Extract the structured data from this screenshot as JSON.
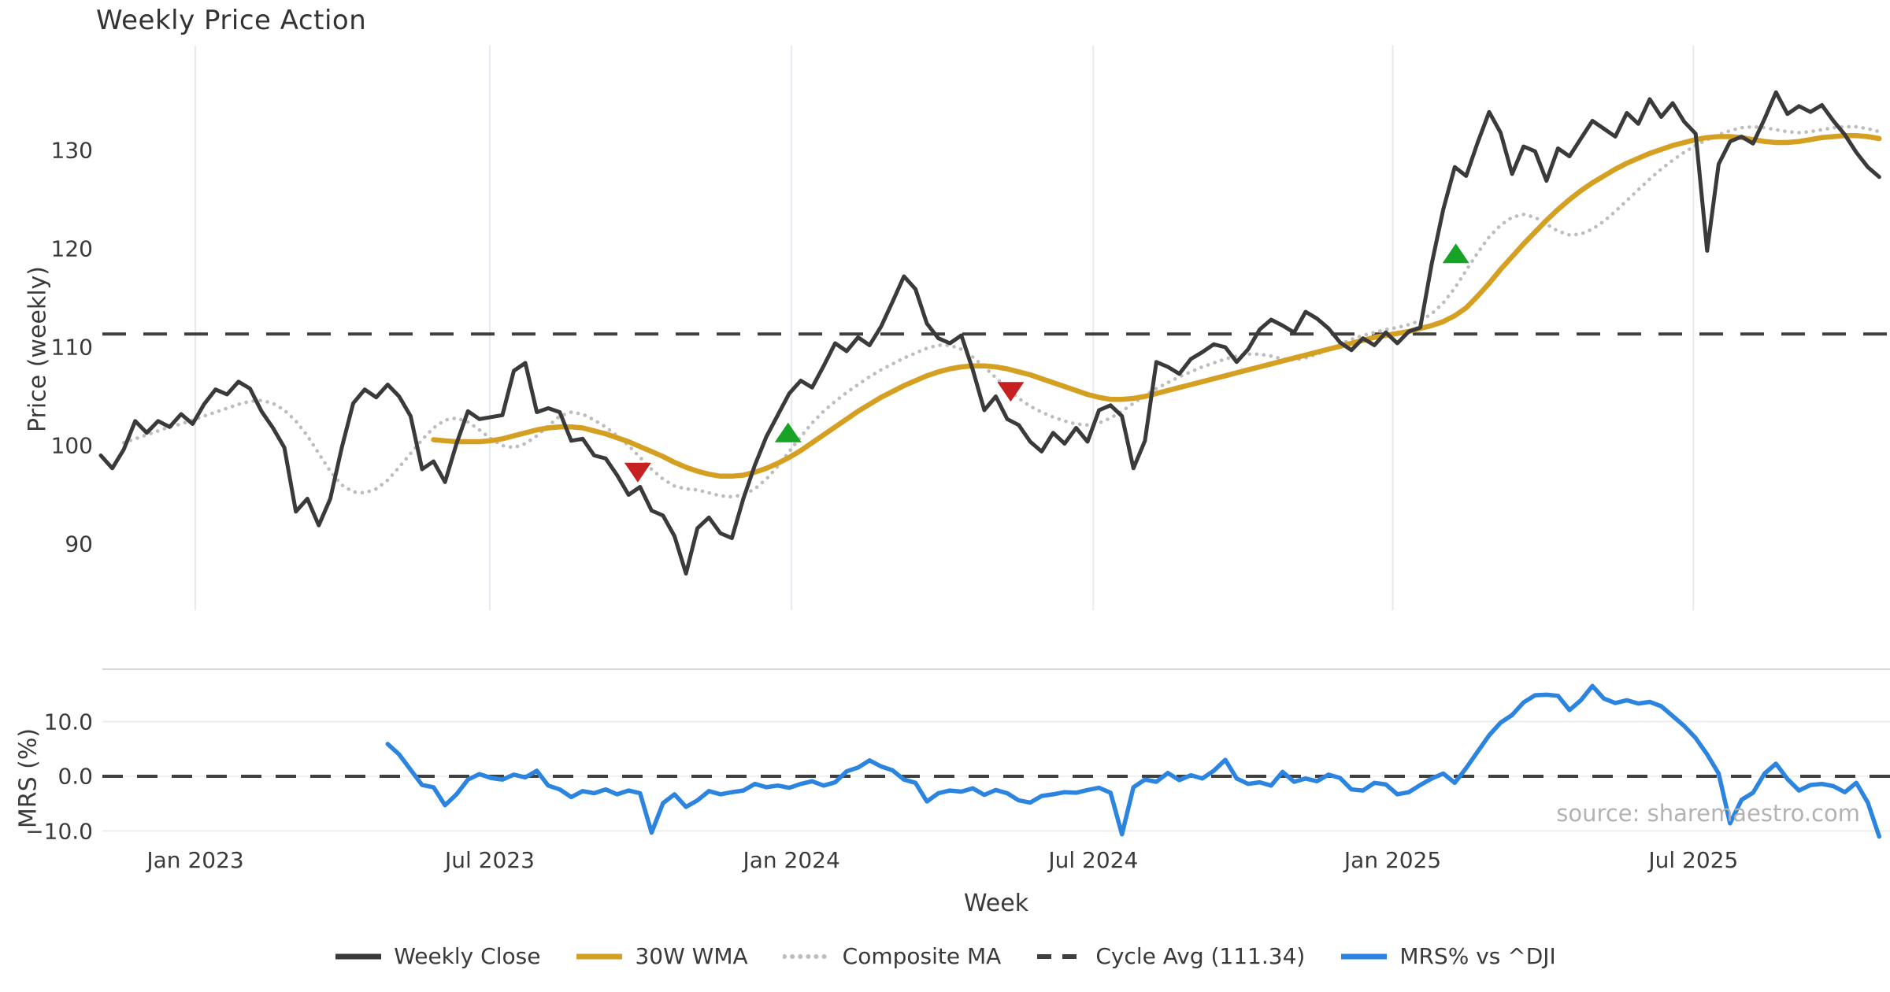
{
  "chart_data": {
    "type": "line",
    "title": "Weekly Price Action",
    "xlabel": "Week",
    "watermark": "source: sharemaestro.com",
    "x_unit": "weeks since first data point (Nov 2022), weekly frequency",
    "x_ticks": [
      {
        "label": "Jan 2023",
        "week": 8.24
      },
      {
        "label": "Jul 2023",
        "week": 33.9
      },
      {
        "label": "Jan 2024",
        "week": 60.2
      },
      {
        "label": "Jul 2024",
        "week": 86.5
      },
      {
        "label": "Jan 2025",
        "week": 112.6
      },
      {
        "label": "Jul 2025",
        "week": 138.8
      }
    ],
    "panels": [
      {
        "name": "price",
        "ylabel": "Price (weekly)",
        "ylim": [
          83.4,
          140.6
        ],
        "yticks": [
          {
            "label": "90",
            "value": 90
          },
          {
            "label": "100",
            "value": 100
          },
          {
            "label": "110",
            "value": 110
          },
          {
            "label": "120",
            "value": 120
          },
          {
            "label": "130",
            "value": 130
          }
        ],
        "grid": "vertical-only",
        "reference_line": {
          "name": "Cycle Avg",
          "value": 111.34,
          "color": "#3f3f3f",
          "style": "dashed"
        },
        "series": [
          {
            "name": "Composite MA",
            "color": "#bdbdbd",
            "style": "dotted",
            "width": 4.6,
            "start_week": 2,
            "values": [
              100.3,
              100.7,
              101.1,
              101.5,
              101.9,
              102.2,
              102.6,
              103.0,
              103.4,
              103.8,
              104.2,
              104.5,
              104.6,
              104.3,
              103.6,
              102.5,
              101.0,
              99.2,
              97.4,
              96.0,
              95.3,
              95.2,
              95.6,
              96.5,
              97.8,
              99.2,
              100.6,
              101.8,
              102.6,
              102.8,
              102.4,
              101.6,
              100.7,
              100.0,
              99.8,
              100.2,
              101.0,
              102.0,
              103.0,
              103.4,
              103.2,
              102.6,
              101.9,
              101.0,
              100.0,
              98.8,
              97.6,
              96.6,
              95.9,
              95.6,
              95.5,
              95.2,
              94.9,
              94.8,
              95.0,
              95.6,
              96.6,
              97.9,
              99.4,
              100.9,
              102.3,
              103.5,
              104.5,
              105.4,
              106.2,
              107.0,
              107.7,
              108.3,
              108.9,
              109.4,
              109.9,
              110.2,
              110.2,
              109.8,
              109.0,
              108.0,
              106.9,
              105.8,
              104.8,
              104.0,
              103.4,
              102.9,
              102.5,
              102.2,
              102.1,
              102.3,
              102.8,
              103.5,
              104.3,
              105.1,
              105.8,
              106.4,
              107.0,
              107.5,
              108.0,
              108.4,
              108.8,
              109.1,
              109.3,
              109.3,
              109.1,
              108.8,
              108.7,
              108.9,
              109.3,
              109.8,
              110.3,
              110.8,
              111.2,
              111.5,
              111.8,
              112.0,
              112.3,
              112.7,
              113.4,
              114.5,
              116.0,
              117.8,
              119.6,
              121.2,
              122.4,
              123.2,
              123.5,
              123.2,
              122.5,
              121.8,
              121.4,
              121.5,
              122.0,
              122.8,
              123.8,
              124.9,
              126.0,
              127.1,
              128.1,
              129.0,
              129.8,
              130.5,
              131.1,
              131.6,
              132.0,
              132.3,
              132.4,
              132.3,
              132.1,
              131.9,
              131.8,
              131.9,
              132.1,
              132.3,
              132.4,
              132.4,
              132.2,
              131.9
            ]
          },
          {
            "name": "30W WMA",
            "color": "#d5a021",
            "style": "solid",
            "width": 6.5,
            "start_week": 29,
            "values": [
              100.6,
              100.5,
              100.4,
              100.4,
              100.4,
              100.5,
              100.7,
              101.0,
              101.3,
              101.6,
              101.8,
              101.9,
              101.9,
              101.8,
              101.5,
              101.2,
              100.8,
              100.4,
              99.9,
              99.4,
              98.9,
              98.3,
              97.8,
              97.4,
              97.1,
              96.9,
              96.9,
              97.0,
              97.3,
              97.7,
              98.2,
              98.8,
              99.5,
              100.3,
              101.1,
              101.9,
              102.7,
              103.5,
              104.2,
              104.9,
              105.5,
              106.1,
              106.6,
              107.1,
              107.5,
              107.8,
              108.0,
              108.1,
              108.1,
              108.0,
              107.8,
              107.5,
              107.2,
              106.8,
              106.4,
              106.0,
              105.6,
              105.2,
              104.9,
              104.7,
              104.7,
              104.8,
              105.0,
              105.3,
              105.6,
              105.9,
              106.2,
              106.5,
              106.8,
              107.1,
              107.4,
              107.7,
              108.0,
              108.3,
              108.6,
              108.9,
              109.2,
              109.5,
              109.8,
              110.1,
              110.4,
              110.7,
              111.0,
              111.2,
              111.4,
              111.6,
              111.9,
              112.2,
              112.6,
              113.2,
              114.0,
              115.2,
              116.5,
              117.9,
              119.2,
              120.5,
              121.7,
              122.9,
              124.0,
              125.0,
              125.9,
              126.7,
              127.4,
              128.1,
              128.7,
              129.2,
              129.7,
              130.1,
              130.5,
              130.8,
              131.1,
              131.3,
              131.4,
              131.4,
              131.3,
              131.1,
              130.9,
              130.8,
              130.8,
              130.9,
              131.1,
              131.3,
              131.4,
              131.5,
              131.5,
              131.4,
              131.2
            ]
          },
          {
            "name": "Weekly Close",
            "color": "#3a3a3a",
            "style": "solid",
            "width": 5,
            "start_week": 0,
            "values": [
              99.0,
              97.7,
              99.6,
              102.5,
              101.3,
              102.5,
              101.9,
              103.2,
              102.2,
              104.2,
              105.7,
              105.2,
              106.5,
              105.8,
              103.5,
              101.8,
              99.8,
              93.3,
              94.6,
              91.9,
              94.6,
              99.8,
              104.3,
              105.7,
              104.9,
              106.2,
              105.0,
              103.0,
              97.6,
              98.4,
              96.3,
              100.2,
              103.5,
              102.7,
              102.9,
              103.1,
              107.6,
              108.4,
              103.4,
              103.8,
              103.4,
              100.5,
              100.7,
              99.0,
              98.7,
              97.0,
              95.0,
              95.8,
              93.4,
              92.9,
              90.8,
              87.0,
              91.6,
              92.7,
              91.1,
              90.6,
              94.6,
              98.0,
              100.9,
              103.1,
              105.3,
              106.6,
              105.9,
              108.1,
              110.4,
              109.6,
              111.0,
              110.2,
              112.1,
              114.6,
              117.2,
              115.9,
              112.4,
              110.9,
              110.4,
              111.2,
              107.7,
              103.6,
              105.0,
              102.7,
              102.1,
              100.4,
              99.4,
              101.3,
              100.2,
              101.8,
              100.4,
              103.6,
              104.1,
              103.0,
              97.7,
              100.5,
              108.5,
              108.0,
              107.3,
              108.8,
              109.5,
              110.3,
              110.0,
              108.5,
              109.8,
              111.8,
              112.8,
              112.2,
              111.5,
              113.6,
              112.9,
              111.9,
              110.5,
              109.7,
              110.9,
              110.2,
              111.5,
              110.4,
              111.6,
              112.0,
              118.5,
              124.0,
              128.3,
              127.4,
              130.8,
              133.9,
              131.8,
              127.6,
              130.4,
              129.9,
              126.9,
              130.2,
              129.4,
              131.2,
              133.0,
              132.2,
              131.4,
              133.8,
              132.7,
              135.2,
              133.4,
              134.8,
              132.9,
              131.7,
              119.8,
              128.6,
              130.9,
              131.4,
              130.7,
              133.2,
              135.9,
              133.7,
              134.5,
              133.9,
              134.6,
              133.0,
              131.6,
              129.8,
              128.3,
              127.3
            ]
          }
        ],
        "signals": {
          "sell_color": "#c62020",
          "buy_color": "#17a325",
          "sell": [
            {
              "week": 46.8,
              "price": 97.3
            },
            {
              "week": 79.3,
              "price": 105.5
            }
          ],
          "buy": [
            {
              "week": 59.9,
              "price": 101.3
            },
            {
              "week": 118.1,
              "price": 119.5
            }
          ]
        }
      },
      {
        "name": "mrs",
        "ylabel": "MRS (%)",
        "ylim": [
          -13.0,
          19.6
        ],
        "yticks": [
          {
            "label": "−10.0",
            "value": -10
          },
          {
            "label": "0.0",
            "value": 0
          },
          {
            "label": "10.0",
            "value": 10
          }
        ],
        "zero_line": {
          "style": "dashed",
          "color": "#3f3f3f",
          "value": 0
        },
        "series": [
          {
            "name": "MRS% vs ^DJI",
            "color": "#2b84e0",
            "style": "solid",
            "width": 5.5,
            "start_week": 25,
            "values": [
              5.9,
              4.0,
              1.2,
              -1.6,
              -2.0,
              -5.3,
              -3.3,
              -0.6,
              0.4,
              -0.3,
              -0.6,
              0.3,
              -0.2,
              1.0,
              -1.7,
              -2.4,
              -3.8,
              -2.7,
              -3.1,
              -2.4,
              -3.3,
              -2.6,
              -3.1,
              -10.3,
              -4.9,
              -3.3,
              -5.6,
              -4.4,
              -2.7,
              -3.3,
              -2.9,
              -2.6,
              -1.4,
              -2.0,
              -1.7,
              -2.1,
              -1.4,
              -0.9,
              -1.7,
              -1.1,
              0.9,
              1.6,
              2.9,
              1.8,
              1.1,
              -0.6,
              -1.2,
              -4.6,
              -3.1,
              -2.6,
              -2.8,
              -2.2,
              -3.4,
              -2.5,
              -3.1,
              -4.4,
              -4.8,
              -3.6,
              -3.3,
              -2.9,
              -3.0,
              -2.5,
              -2.1,
              -3.0,
              -10.6,
              -2.0,
              -0.6,
              -1.0,
              0.6,
              -0.7,
              0.2,
              -0.4,
              1.0,
              3.0,
              -0.4,
              -1.4,
              -1.1,
              -1.7,
              0.8,
              -1.0,
              -0.4,
              -0.9,
              0.3,
              -0.3,
              -2.4,
              -2.6,
              -1.2,
              -1.5,
              -3.3,
              -2.9,
              -1.6,
              -0.4,
              0.5,
              -1.2,
              1.5,
              4.5,
              7.5,
              9.8,
              11.2,
              13.5,
              14.8,
              14.9,
              14.7,
              12.1,
              13.9,
              16.5,
              14.2,
              13.4,
              13.9,
              13.3,
              13.6,
              12.8,
              11.0,
              9.2,
              7.0,
              4.0,
              0.5,
              -8.6,
              -4.3,
              -3.0,
              0.5,
              2.3,
              -0.5,
              -2.6,
              -1.6,
              -1.4,
              -1.8,
              -2.9,
              -1.2,
              -4.8,
              -11.0
            ]
          }
        ]
      }
    ],
    "legend": [
      {
        "label": "Weekly Close",
        "style": "solid",
        "color": "#3a3a3a"
      },
      {
        "label": "30W WMA",
        "style": "solid",
        "color": "#d5a021"
      },
      {
        "label": "Composite MA",
        "style": "dotted",
        "color": "#bdbdbd"
      },
      {
        "label": "Cycle Avg (111.34)",
        "style": "dashed",
        "color": "#3f3f3f"
      },
      {
        "label": "MRS% vs ^DJI",
        "style": "solid",
        "color": "#2b84e0"
      }
    ]
  }
}
